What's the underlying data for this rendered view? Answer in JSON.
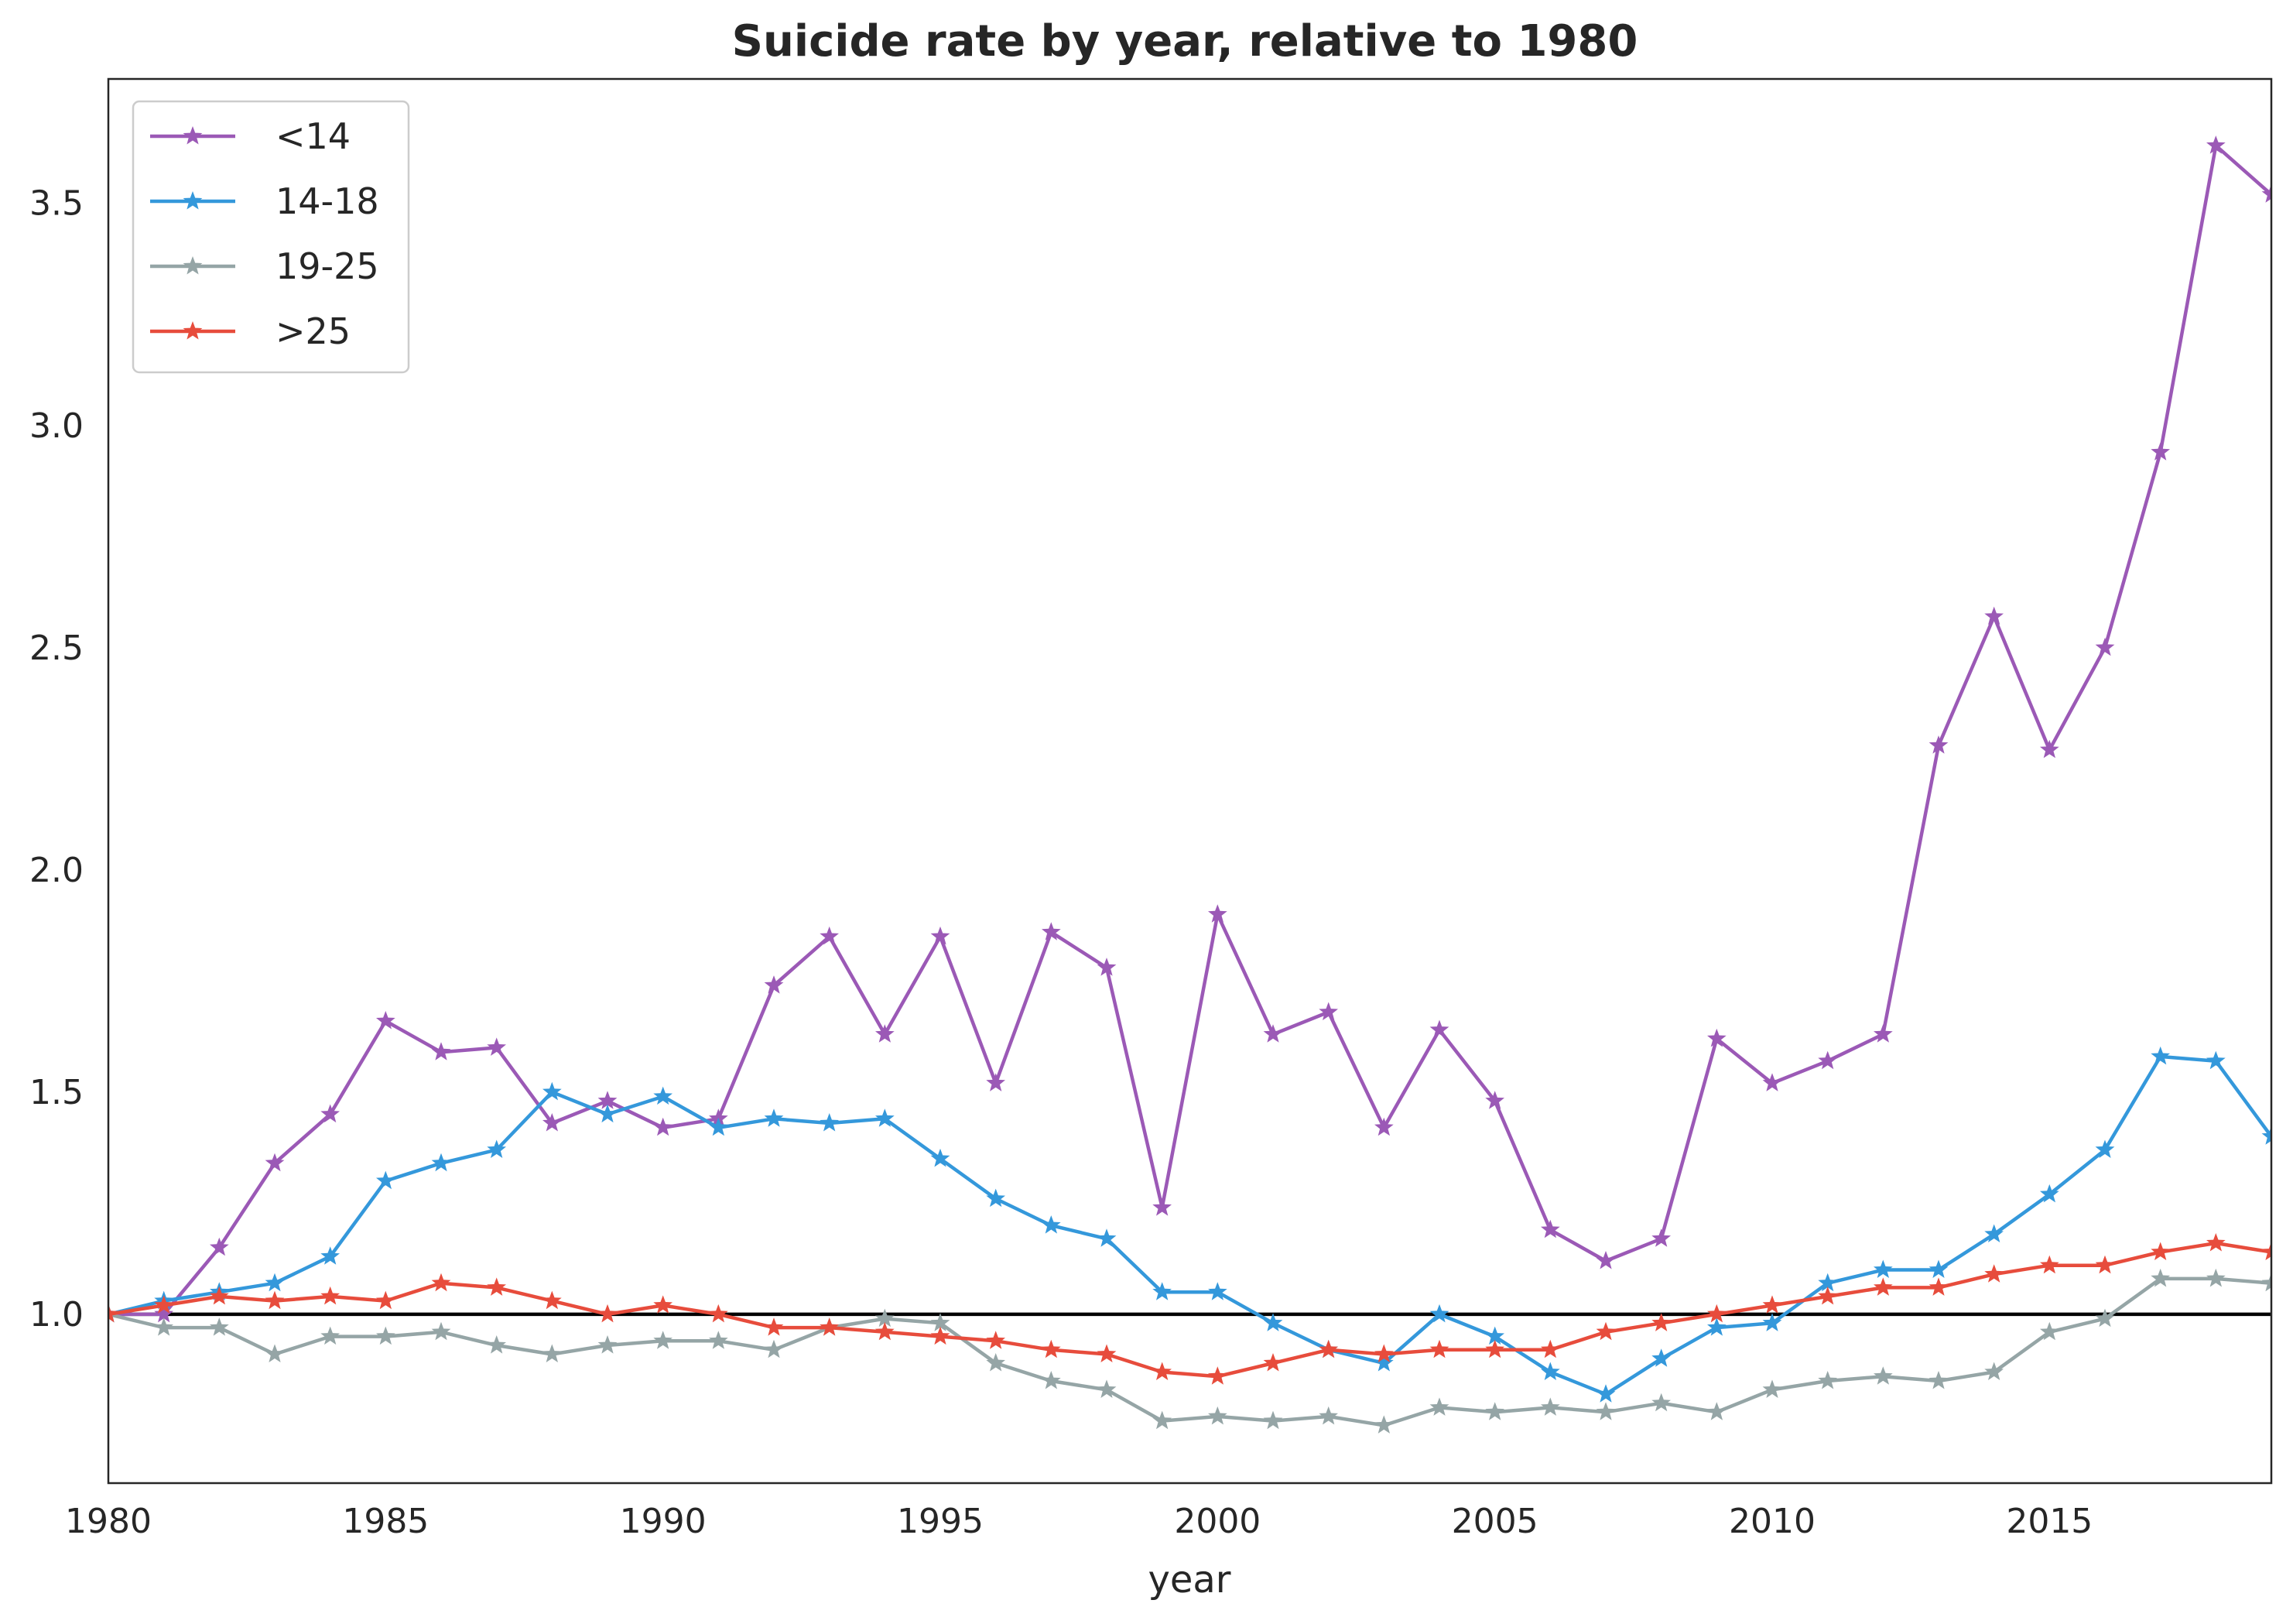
{
  "chart_data": {
    "type": "line",
    "title": "Suicide rate by year, relative to 1980",
    "xlabel": "year",
    "ylabel": "",
    "xlim": [
      1980,
      2019
    ],
    "ylim": [
      0.62,
      3.78
    ],
    "xticks": [
      1980,
      1985,
      1990,
      1995,
      2000,
      2005,
      2010,
      2015
    ],
    "xtick_labels": [
      "1980",
      "1985",
      "1990",
      "1995",
      "2000",
      "2005",
      "2010",
      "2015"
    ],
    "yticks": [
      1.0,
      1.5,
      2.0,
      2.5,
      3.0,
      3.5
    ],
    "ytick_labels": [
      "1.0",
      "1.5",
      "2.0",
      "2.5",
      "3.0",
      "3.5"
    ],
    "reference_line": 1.0,
    "grid": false,
    "legend_position": "top-left",
    "marker": "star",
    "x": [
      1980,
      1981,
      1982,
      1983,
      1984,
      1985,
      1986,
      1987,
      1988,
      1989,
      1990,
      1991,
      1992,
      1993,
      1994,
      1995,
      1996,
      1997,
      1998,
      1999,
      2000,
      2001,
      2002,
      2003,
      2004,
      2005,
      2006,
      2007,
      2008,
      2009,
      2010,
      2011,
      2012,
      2013,
      2014,
      2015,
      2016,
      2017,
      2018,
      2019
    ],
    "series": [
      {
        "name": "<14",
        "color": "#9b59b6",
        "values": [
          1.0,
          1.0,
          1.15,
          1.34,
          1.45,
          1.66,
          1.59,
          1.6,
          1.43,
          1.48,
          1.42,
          1.44,
          1.74,
          1.85,
          1.63,
          1.85,
          1.52,
          1.86,
          1.78,
          1.24,
          1.9,
          1.63,
          1.68,
          1.42,
          1.64,
          1.48,
          1.19,
          1.12,
          1.17,
          1.62,
          1.52,
          1.57,
          1.63,
          2.28,
          2.57,
          2.27,
          2.5,
          2.94,
          3.63,
          3.52
        ]
      },
      {
        "name": "14-18",
        "color": "#3498db",
        "values": [
          1.0,
          1.03,
          1.05,
          1.07,
          1.13,
          1.3,
          1.34,
          1.37,
          1.5,
          1.45,
          1.49,
          1.42,
          1.44,
          1.43,
          1.44,
          1.35,
          1.26,
          1.2,
          1.17,
          1.05,
          1.05,
          0.98,
          0.92,
          0.89,
          1.0,
          0.95,
          0.87,
          0.82,
          0.9,
          0.97,
          0.98,
          1.07,
          1.1,
          1.1,
          1.18,
          1.27,
          1.37,
          1.58,
          1.57,
          1.4
        ]
      },
      {
        "name": "19-25",
        "color": "#95a5a6",
        "values": [
          1.0,
          0.97,
          0.97,
          0.91,
          0.95,
          0.95,
          0.96,
          0.93,
          0.91,
          0.93,
          0.94,
          0.94,
          0.92,
          0.97,
          0.99,
          0.98,
          0.89,
          0.85,
          0.83,
          0.76,
          0.77,
          0.76,
          0.77,
          0.75,
          0.79,
          0.78,
          0.79,
          0.78,
          0.8,
          0.78,
          0.83,
          0.85,
          0.86,
          0.85,
          0.87,
          0.96,
          0.99,
          1.08,
          1.08,
          1.07
        ]
      },
      {
        "name": ">25",
        "color": "#e74c3c",
        "values": [
          1.0,
          1.02,
          1.04,
          1.03,
          1.04,
          1.03,
          1.07,
          1.06,
          1.03,
          1.0,
          1.02,
          1.0,
          0.97,
          0.97,
          0.96,
          0.95,
          0.94,
          0.92,
          0.91,
          0.87,
          0.86,
          0.89,
          0.92,
          0.91,
          0.92,
          0.92,
          0.92,
          0.96,
          0.98,
          1.0,
          1.02,
          1.04,
          1.06,
          1.06,
          1.09,
          1.11,
          1.11,
          1.14,
          1.16,
          1.14
        ]
      }
    ]
  }
}
